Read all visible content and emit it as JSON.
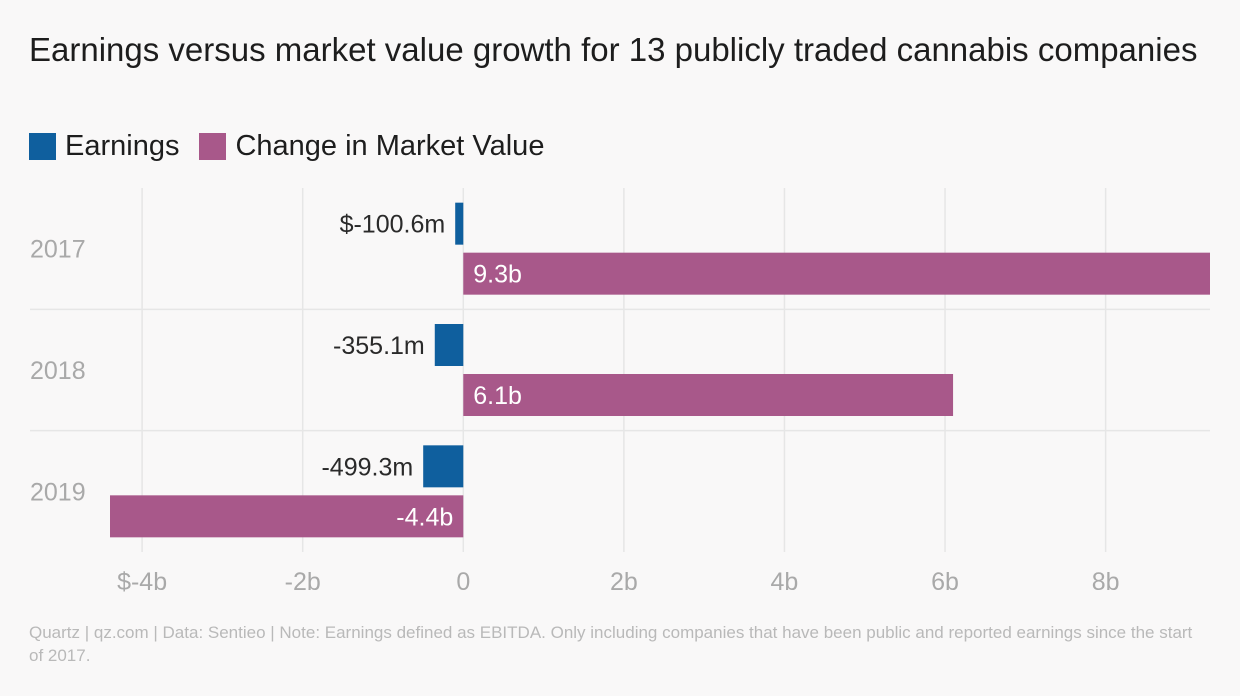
{
  "title": "Earnings versus market value growth for 13 publicly traded cannabis companies",
  "footer": "Quartz | qz.com | Data: Sentieo | Note: Earnings defined as EBITDA. Only including companies that have been public and reported earnings since the start of 2017.",
  "colors": {
    "earnings": "#0f5f9e",
    "market": "#a8588a",
    "grid": "#e6e6e6",
    "axis_text": "#a9a9a9",
    "label_dark": "#2a2a2a",
    "label_light": "#ffffff"
  },
  "chart_data": {
    "type": "bar",
    "orientation": "horizontal",
    "categories": [
      "2017",
      "2018",
      "2019"
    ],
    "series": [
      {
        "name": "Earnings",
        "values": [
          -0.1006,
          -0.3551,
          -0.4993
        ],
        "labels": [
          "$-100.6m",
          "-355.1m",
          "-499.3m"
        ]
      },
      {
        "name": "Change in Market Value",
        "values": [
          9.3,
          6.1,
          -4.4
        ],
        "labels": [
          "9.3b",
          "6.1b",
          "-4.4b"
        ]
      }
    ],
    "xlim": [
      -4.4,
      9.3
    ],
    "xticks": [
      -4,
      -2,
      0,
      2,
      4,
      6,
      8
    ],
    "xtick_labels": [
      "$-4b",
      "-2b",
      "0",
      "2b",
      "4b",
      "6b",
      "8b"
    ],
    "grid": true,
    "legend": "top-left"
  }
}
